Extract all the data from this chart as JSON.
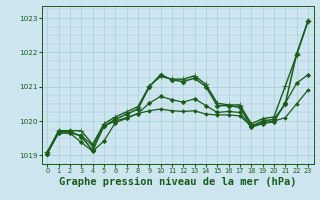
{
  "background_color": "#cce5ee",
  "grid_color": "#aaccdd",
  "line_color": "#1a5c1a",
  "title": "Graphe pression niveau de la mer (hPa)",
  "ylim": [
    1018.75,
    1023.35
  ],
  "xlim": [
    -0.5,
    23.5
  ],
  "yticks": [
    1019,
    1020,
    1021,
    1022,
    1023
  ],
  "xticks": [
    0,
    1,
    2,
    3,
    4,
    5,
    6,
    7,
    8,
    9,
    10,
    11,
    12,
    13,
    14,
    15,
    16,
    17,
    18,
    19,
    20,
    21,
    22,
    23
  ],
  "lines": [
    {
      "x": [
        0,
        1,
        2,
        3,
        4,
        5,
        6,
        7,
        8,
        9,
        10,
        11,
        12,
        13,
        14,
        15,
        16,
        17,
        18,
        19,
        20,
        21,
        22,
        23
      ],
      "y": [
        1019.05,
        1019.7,
        1019.7,
        1019.55,
        1019.15,
        1019.85,
        1020.05,
        1020.2,
        1020.35,
        1021.0,
        1021.35,
        1021.2,
        1021.15,
        1021.25,
        1021.0,
        1020.45,
        1020.45,
        1020.4,
        1019.85,
        1020.0,
        1020.05,
        1020.5,
        1021.95,
        1022.9
      ],
      "marker": "D",
      "markersize": 2.5,
      "linewidth": 1.1
    },
    {
      "x": [
        0,
        1,
        2,
        3,
        4,
        5,
        6,
        7,
        8,
        9,
        10,
        11,
        12,
        13,
        14,
        15,
        16,
        17,
        18,
        19,
        20,
        21,
        22,
        23
      ],
      "y": [
        1019.1,
        1019.72,
        1019.72,
        1019.72,
        1019.32,
        1019.92,
        1020.12,
        1020.27,
        1020.42,
        1021.02,
        1021.3,
        1021.22,
        1021.22,
        1021.32,
        1021.07,
        1020.52,
        1020.47,
        1020.47,
        1019.92,
        1020.07,
        1020.12,
        1021.02,
        1021.92,
        1022.92
      ],
      "marker": "+",
      "markersize": 4.0,
      "linewidth": 1.0
    },
    {
      "x": [
        0,
        1,
        2,
        3,
        4,
        5,
        6,
        7,
        8,
        9,
        10,
        11,
        12,
        13,
        14,
        15,
        16,
        17,
        18,
        19,
        20,
        21,
        22,
        23
      ],
      "y": [
        1019.1,
        1019.65,
        1019.65,
        1019.58,
        1019.28,
        1019.85,
        1020.0,
        1020.1,
        1020.22,
        1020.3,
        1020.35,
        1020.3,
        1020.28,
        1020.3,
        1020.2,
        1020.18,
        1020.18,
        1020.15,
        1019.85,
        1019.95,
        1020.0,
        1020.1,
        1020.5,
        1020.9
      ],
      "marker": "D",
      "markersize": 1.8,
      "linewidth": 0.9
    },
    {
      "x": [
        0,
        1,
        2,
        3,
        4,
        5,
        6,
        7,
        8,
        9,
        10,
        11,
        12,
        13,
        14,
        15,
        16,
        17,
        18,
        19,
        20,
        21,
        22,
        23
      ],
      "y": [
        1019.05,
        1019.65,
        1019.65,
        1019.38,
        1019.12,
        1019.42,
        1019.95,
        1020.08,
        1020.22,
        1020.52,
        1020.72,
        1020.62,
        1020.55,
        1020.65,
        1020.45,
        1020.25,
        1020.28,
        1020.25,
        1019.82,
        1019.92,
        1019.98,
        1020.52,
        1021.1,
        1021.35
      ],
      "marker": "D",
      "markersize": 2.2,
      "linewidth": 0.9
    }
  ]
}
